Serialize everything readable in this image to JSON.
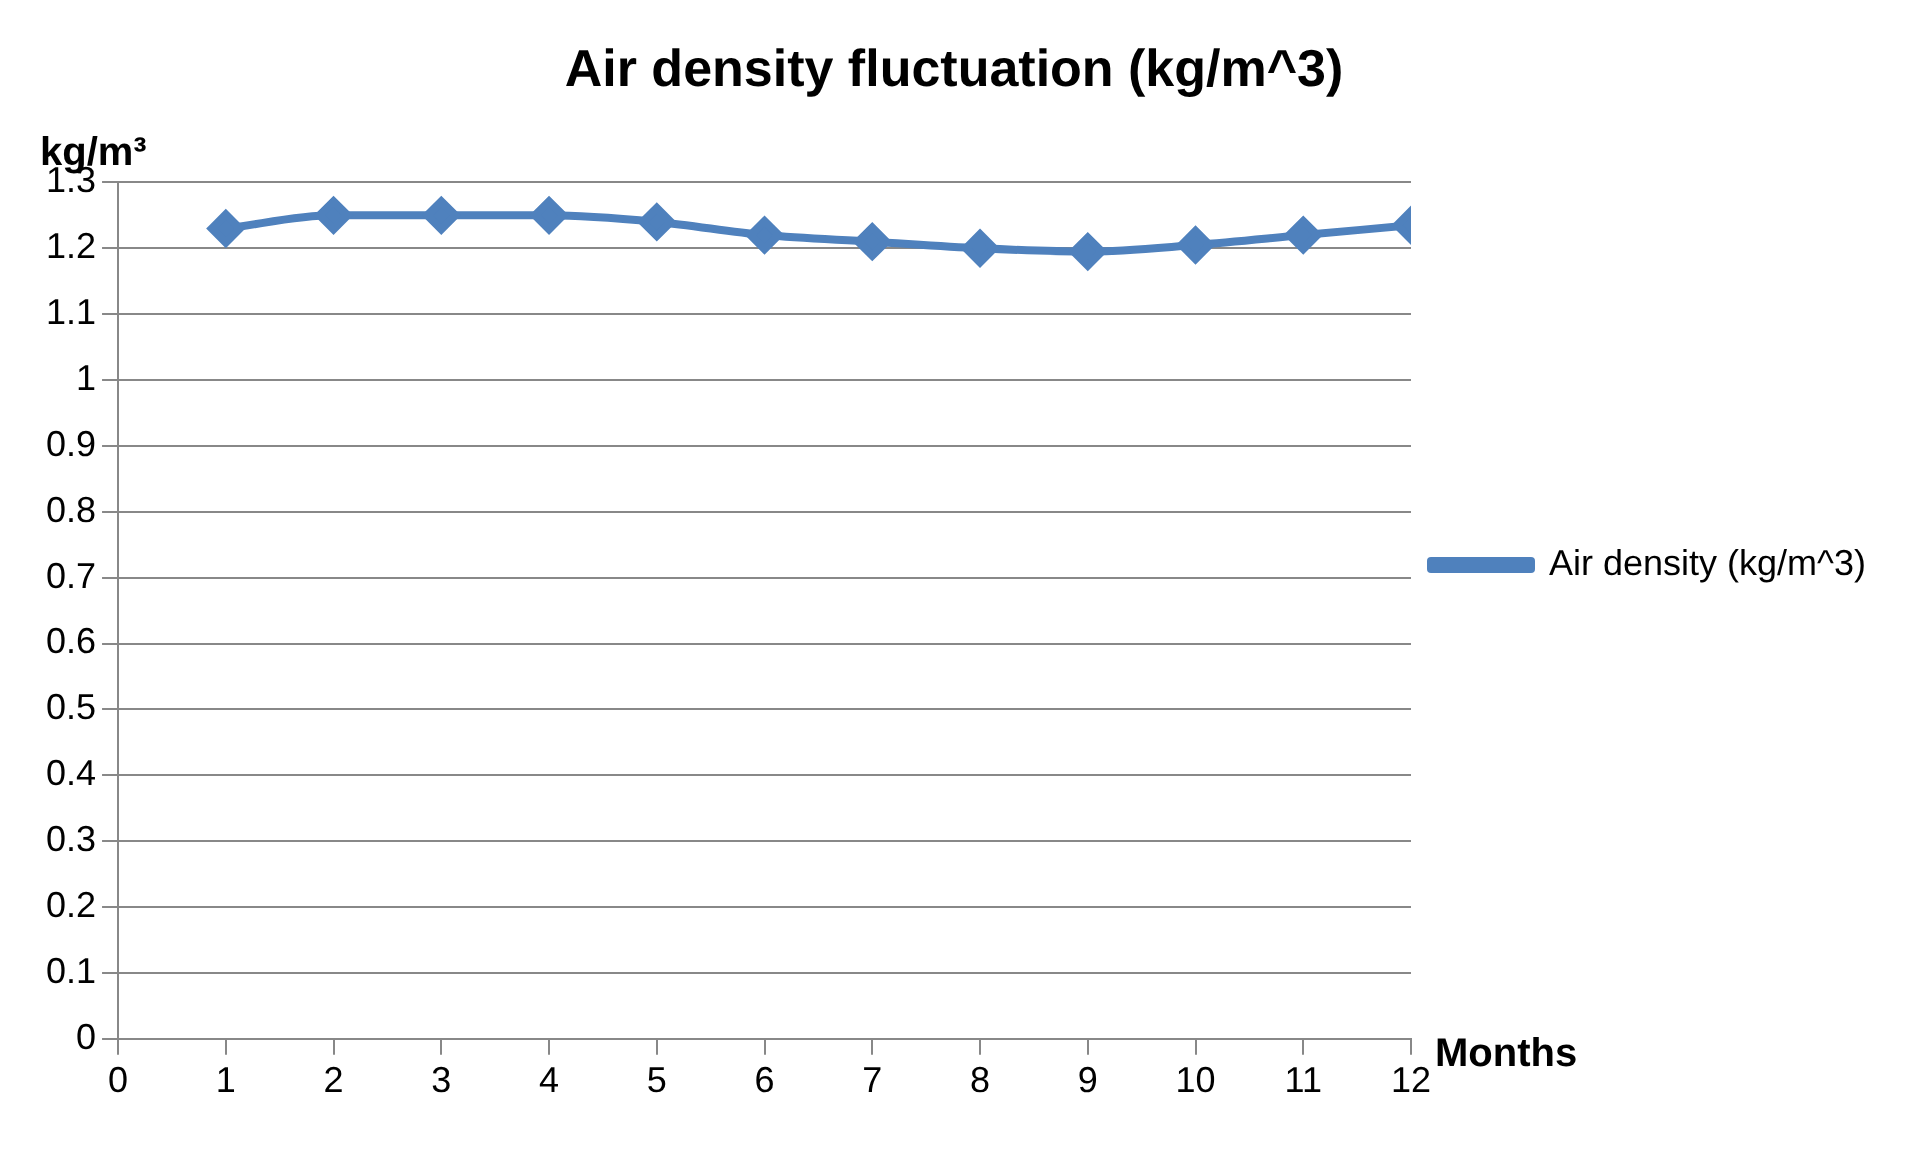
{
  "chart_data": {
    "type": "line",
    "title": "Air density fluctuation (kg/m^3)",
    "ylabel": "kg/m³",
    "xlabel": "Months",
    "x": [
      1,
      2,
      3,
      4,
      5,
      6,
      7,
      8,
      9,
      10,
      11,
      12
    ],
    "series": [
      {
        "name": "Air density (kg/m^3)",
        "color": "#4f81bd",
        "values": [
          1.23,
          1.25,
          1.25,
          1.25,
          1.24,
          1.22,
          1.21,
          1.2,
          1.195,
          1.205,
          1.22,
          1.235
        ]
      }
    ],
    "xlim": [
      0,
      12
    ],
    "xticks": [
      0,
      1,
      2,
      3,
      4,
      5,
      6,
      7,
      8,
      9,
      10,
      11,
      12
    ],
    "ylim": [
      0,
      1.3
    ],
    "yticks": [
      0,
      0.1,
      0.2,
      0.3,
      0.4,
      0.5,
      0.6,
      0.7,
      0.8,
      0.9,
      1,
      1.1,
      1.2,
      1.3
    ],
    "grid": "y",
    "legend": "right",
    "marker": "diamond",
    "line_style": "solid"
  }
}
